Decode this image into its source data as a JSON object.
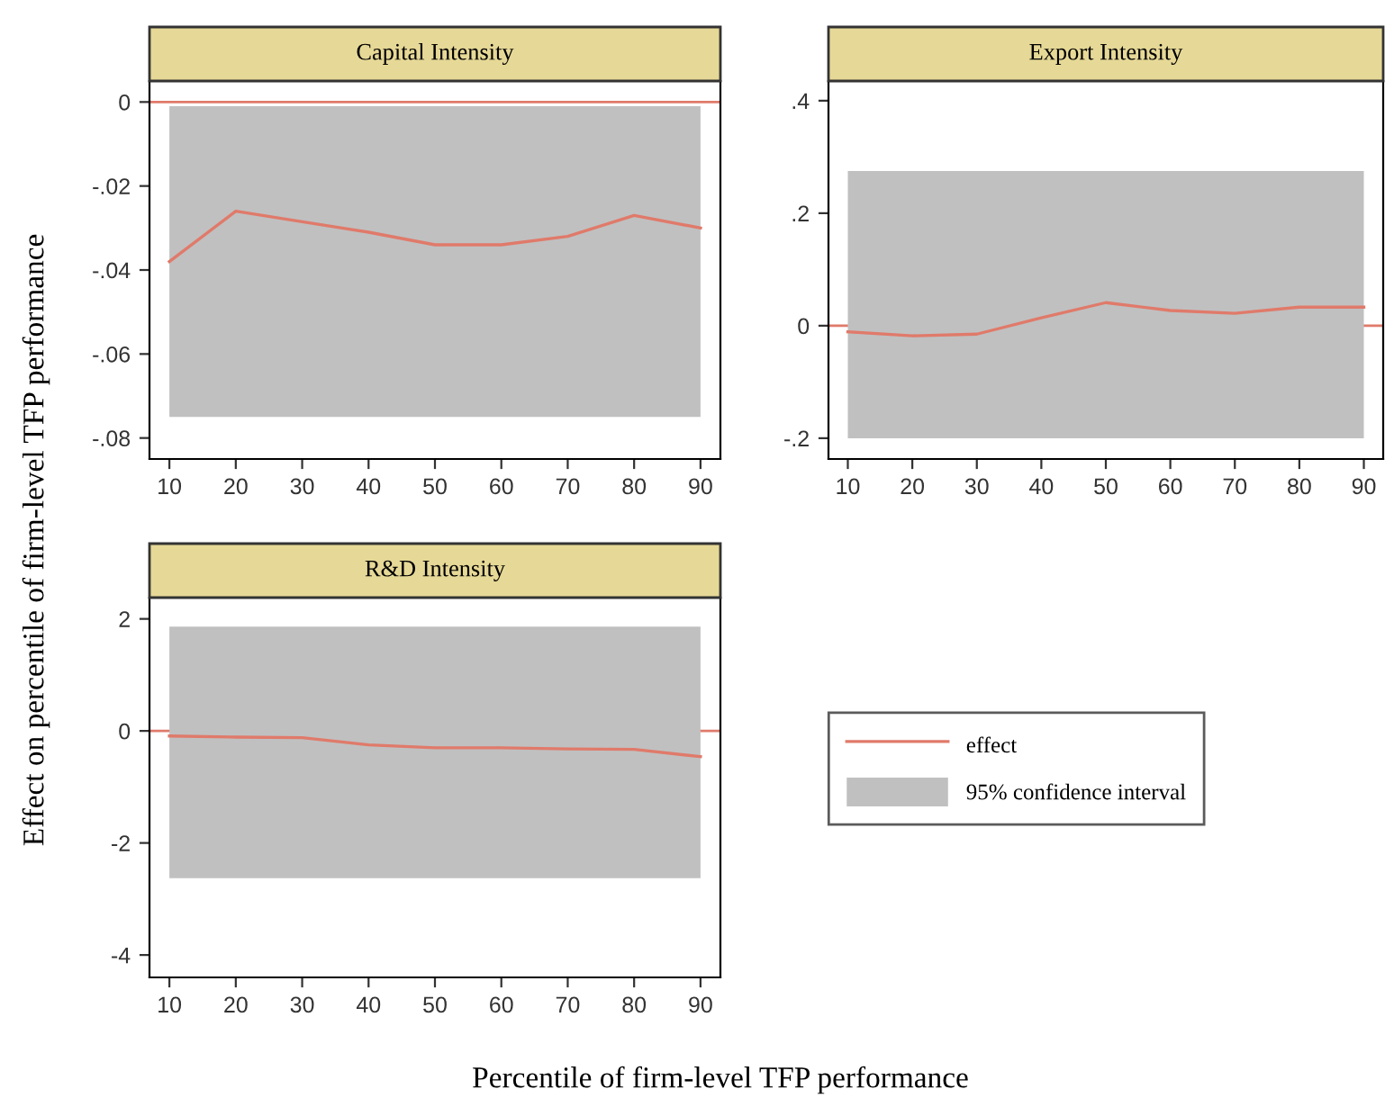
{
  "chart_data": [
    {
      "type": "line",
      "title": "Capital Intensity",
      "ylabel": "Effect on percentile of firm-level TFP performance",
      "xlabel": "Percentile of firm-level TFP performance",
      "x": [
        10,
        20,
        30,
        40,
        50,
        60,
        70,
        80,
        90
      ],
      "series": [
        {
          "color": "#e07a6a",
          "values": [
            -0.038,
            -0.026,
            -0.0285,
            -0.031,
            -0.034,
            -0.034,
            -0.032,
            -0.027,
            -0.03
          ],
          "lower": [
            -0.075,
            -0.075,
            -0.075,
            -0.075,
            -0.075,
            -0.075,
            -0.075,
            -0.075,
            -0.075
          ],
          "upper": [
            -0.001,
            -0.001,
            -0.001,
            -0.001,
            -0.001,
            -0.001,
            -0.001,
            -0.001,
            -0.001
          ]
        }
      ],
      "xlim": [
        7,
        93
      ],
      "xticks": [
        10,
        20,
        30,
        40,
        50,
        60,
        70,
        80,
        90
      ],
      "ylim": [
        -0.085,
        0.005
      ],
      "yticks": [
        {
          "value": 0,
          "label": "0"
        },
        {
          "value": -0.02,
          "label": "-.02"
        },
        {
          "value": -0.04,
          "label": "-.04"
        },
        {
          "value": -0.06,
          "label": "-.06"
        },
        {
          "value": -0.08,
          "label": "-.08"
        }
      ],
      "ref_lines": [
        {
          "axis": "y",
          "value": 0,
          "color": "#e07a6a"
        }
      ],
      "grid": false
    },
    {
      "type": "line",
      "title": "Export Intensity",
      "x": [
        10,
        20,
        30,
        40,
        50,
        60,
        70,
        80,
        90
      ],
      "series": [
        {
          "color": "#e07a6a",
          "values": [
            -0.011,
            -0.018,
            -0.015,
            0.014,
            0.041,
            0.027,
            0.022,
            0.033,
            0.033
          ],
          "lower": [
            -0.2,
            -0.2,
            -0.2,
            -0.2,
            -0.2,
            -0.2,
            -0.2,
            -0.2,
            -0.2
          ],
          "upper": [
            0.275,
            0.275,
            0.275,
            0.275,
            0.275,
            0.275,
            0.275,
            0.275,
            0.275
          ]
        }
      ],
      "xlim": [
        7,
        93
      ],
      "xticks": [
        10,
        20,
        30,
        40,
        50,
        60,
        70,
        80,
        90
      ],
      "ylim": [
        -0.237,
        0.435
      ],
      "yticks": [
        {
          "value": 0.4,
          "label": ".4"
        },
        {
          "value": 0.2,
          "label": ".2"
        },
        0,
        {
          "value": -0.2,
          "label": "-.2"
        }
      ],
      "ref_lines": [
        {
          "axis": "y",
          "value": 0,
          "color": "#e07a6a"
        }
      ],
      "grid": false
    },
    {
      "type": "line",
      "title": "R&D Intensity",
      "x": [
        10,
        20,
        30,
        40,
        50,
        60,
        70,
        80,
        90
      ],
      "series": [
        {
          "name": "effect",
          "color": "#e07a6a",
          "values": [
            -0.09,
            -0.11,
            -0.12,
            -0.25,
            -0.3,
            -0.3,
            -0.32,
            -0.33,
            -0.46
          ],
          "lower": [
            -2.63,
            -2.63,
            -2.63,
            -2.63,
            -2.63,
            -2.63,
            -2.63,
            -2.63,
            -2.63
          ],
          "upper": [
            1.86,
            1.86,
            1.86,
            1.86,
            1.86,
            1.86,
            1.86,
            1.86,
            1.86
          ]
        }
      ],
      "xlim": [
        7,
        93
      ],
      "xticks": [
        10,
        20,
        30,
        40,
        50,
        60,
        70,
        80,
        90
      ],
      "ylim": [
        -4.4,
        2.38
      ],
      "yticks": [
        2,
        0,
        -2,
        -4
      ],
      "ref_lines": [
        {
          "axis": "y",
          "value": 0,
          "color": "#e07a6a"
        }
      ],
      "grid": false,
      "legend": "right",
      "annotations": [
        "95% confidence interval"
      ]
    }
  ]
}
